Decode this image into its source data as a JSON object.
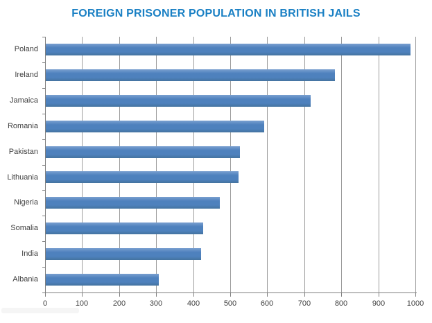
{
  "chart_data": {
    "type": "bar",
    "orientation": "horizontal",
    "title": "FOREIGN PRISONER POPULATION IN BRITISH JAILS",
    "categories": [
      "Poland",
      "Ireland",
      "Jamaica",
      "Romania",
      "Pakistan",
      "Lithuania",
      "Nigeria",
      "Somalia",
      "India",
      "Albania"
    ],
    "values": [
      985,
      780,
      715,
      590,
      525,
      520,
      470,
      425,
      420,
      305
    ],
    "xlabel": "",
    "ylabel": "",
    "xlim": [
      0,
      1000
    ],
    "xticks": [
      0,
      100,
      200,
      300,
      400,
      500,
      600,
      700,
      800,
      900,
      1000
    ],
    "xtick_labels": [
      "0",
      "100",
      "200",
      "300",
      "400",
      "500",
      "600",
      "700",
      "800",
      "900",
      "1000"
    ],
    "grid": "vertical-gridlines-on",
    "legend": "none",
    "colors": {
      "bar_fill": "#4e81bd",
      "bar_fill_light": "#7aa0d0",
      "bar_fill_dark": "#44739f",
      "title_text": "#1a80c4",
      "gridline": "#9b9b9b",
      "axis_line": "#7f7f7f",
      "label_text": "#3f3f3f",
      "background": "#ffffff"
    }
  }
}
